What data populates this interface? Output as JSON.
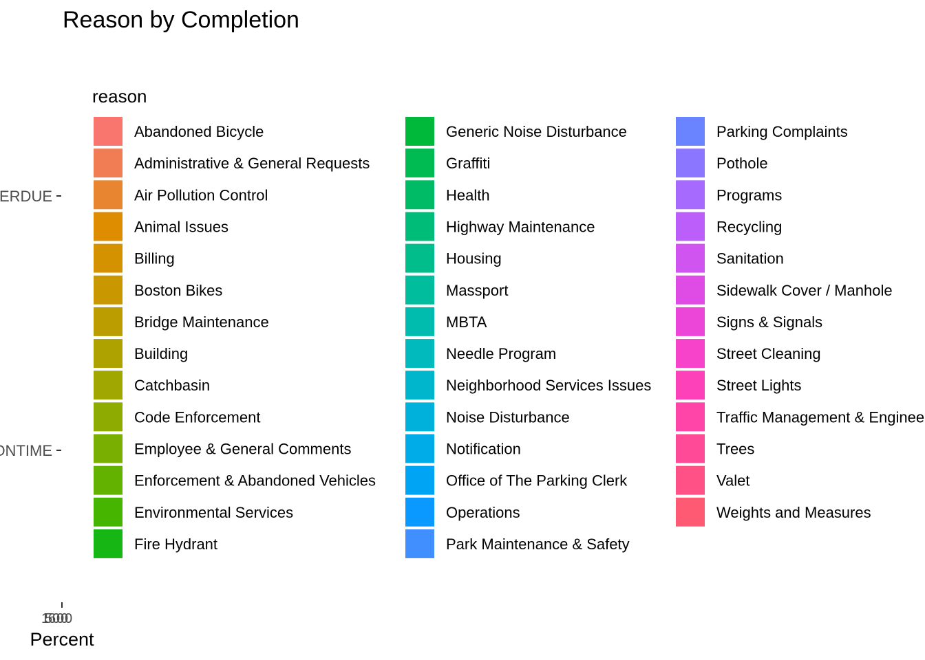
{
  "chart_data": {
    "type": "bar",
    "title": "Reason by Completion",
    "subtitle": "",
    "xlabel": "Percent",
    "ylabel": "",
    "categories": [
      "OVERDUE",
      "ONTIME"
    ],
    "x_tick_labels": [
      "1",
      "5",
      "6",
      "0",
      "0",
      "0",
      "0"
    ],
    "legend": {
      "title": "reason",
      "placement": "overlaying plot, left",
      "columns": 3,
      "entries": [
        {
          "label": "Abandoned Bicycle",
          "color": "#F8766D"
        },
        {
          "label": "Administrative & General Requests",
          "color": "#F07D54"
        },
        {
          "label": "Air Pollution Control",
          "color": "#E88530"
        },
        {
          "label": "Animal Issues",
          "color": "#DE8C00"
        },
        {
          "label": "Billing",
          "color": "#D49200"
        },
        {
          "label": "Boston Bikes",
          "color": "#C99800"
        },
        {
          "label": "Bridge Maintenance",
          "color": "#BB9D00"
        },
        {
          "label": "Building",
          "color": "#AEA200"
        },
        {
          "label": "Catchbasin",
          "color": "#9FA700"
        },
        {
          "label": "Code Enforcement",
          "color": "#8DAB00"
        },
        {
          "label": "Employee & General Comments",
          "color": "#79AF00"
        },
        {
          "label": "Enforcement & Abandoned Vehicles",
          "color": "#64B200"
        },
        {
          "label": "Environmental Services",
          "color": "#45B500"
        },
        {
          "label": "Fire Hydrant",
          "color": "#16B714"
        },
        {
          "label": "Generic Noise Disturbance",
          "color": "#00B93A"
        },
        {
          "label": "Graffiti",
          "color": "#00BA52"
        },
        {
          "label": "Health",
          "color": "#00BB66"
        },
        {
          "label": "Highway Maintenance",
          "color": "#00BC79"
        },
        {
          "label": "Housing",
          "color": "#00BD8B"
        },
        {
          "label": "Massport",
          "color": "#00BD9D"
        },
        {
          "label": "MBTA",
          "color": "#00BCAE"
        },
        {
          "label": "Needle Program",
          "color": "#00BABE"
        },
        {
          "label": "Neighborhood Services Issues",
          "color": "#00B6CD"
        },
        {
          "label": "Noise Disturbance",
          "color": "#00B2DB"
        },
        {
          "label": "Notification",
          "color": "#00ACE8"
        },
        {
          "label": "Office of The Parking Clerk",
          "color": "#00A4F4"
        },
        {
          "label": "Operations",
          "color": "#0A9AFF"
        },
        {
          "label": "Park Maintenance & Safety",
          "color": "#418FFF"
        },
        {
          "label": "Parking Complaints",
          "color": "#6A83FF"
        },
        {
          "label": "Pothole",
          "color": "#8B76FF"
        },
        {
          "label": "Programs",
          "color": "#A66AFF"
        },
        {
          "label": "Recycling",
          "color": "#BC5EF9"
        },
        {
          "label": "Sanitation",
          "color": "#CF54F0"
        },
        {
          "label": "Sidewalk Cover / Manhole",
          "color": "#DE4CE5"
        },
        {
          "label": "Signs & Signals",
          "color": "#EB46D8"
        },
        {
          "label": "Street Cleaning",
          "color": "#F643C9"
        },
        {
          "label": "Street Lights",
          "color": "#FD42B9"
        },
        {
          "label": "Traffic Management & Engineering",
          "color": "#FF45A8"
        },
        {
          "label": "Trees",
          "color": "#FF4A97"
        },
        {
          "label": "Valet",
          "color": "#FF5185"
        },
        {
          "label": "Weights and Measures",
          "color": "#FF5A73"
        }
      ]
    },
    "grid": false
  }
}
